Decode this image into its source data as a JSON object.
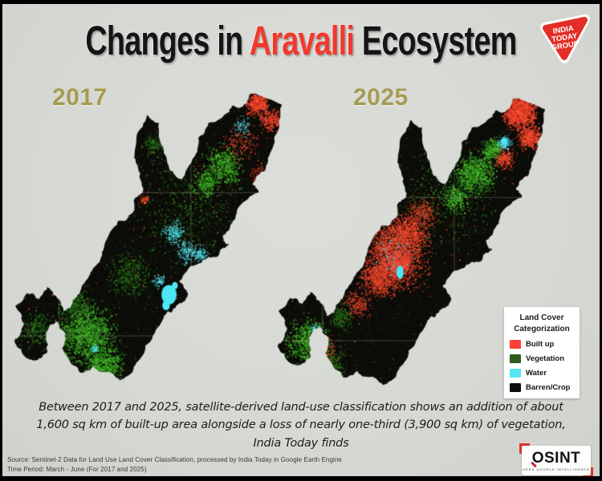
{
  "frame": {
    "background": "#d7d9d5",
    "border_color": "#000000"
  },
  "header": {
    "title_prefix": "Changes in ",
    "title_highlight": "Aravalli",
    "title_suffix": " Ecosystem",
    "title_highlight_color": "#f2382d",
    "logo": {
      "line1": "INDIA",
      "line2": "TODAY",
      "line3": "GROUP",
      "color": "#e22e26"
    }
  },
  "maps": [
    {
      "year": "2017"
    },
    {
      "year": "2025"
    }
  ],
  "year_label_color": "#a59b51",
  "legend": {
    "title_line1": "Land Cover",
    "title_line2": "Categorization",
    "items": [
      {
        "label": "Built up",
        "color": "#fc4136"
      },
      {
        "label": "Vegetation",
        "color": "#2d5c1e"
      },
      {
        "label": "Water",
        "color": "#55e7f2"
      },
      {
        "label": "Barren/Crop",
        "color": "#0d0d0b"
      }
    ]
  },
  "caption": {
    "line1": "Between 2017 and 2025, satellite-derived land-use classification shows an addition of about",
    "line2": "1,600 sq km of built-up area alongside a loss of nearly one-third (3,900 sq km) of vegetation,",
    "line3": "India Today finds"
  },
  "source": {
    "line1": "Source: Sentinel-2 Data for Land Use Land Cover Classification, processed by India Today in Google Earth Engine",
    "line2": "Time Period: March - June (For 2017 and 2025)"
  },
  "osint": {
    "text": "OSINT",
    "subtext": "OPEN SOURCE INTELLIGENCE"
  }
}
